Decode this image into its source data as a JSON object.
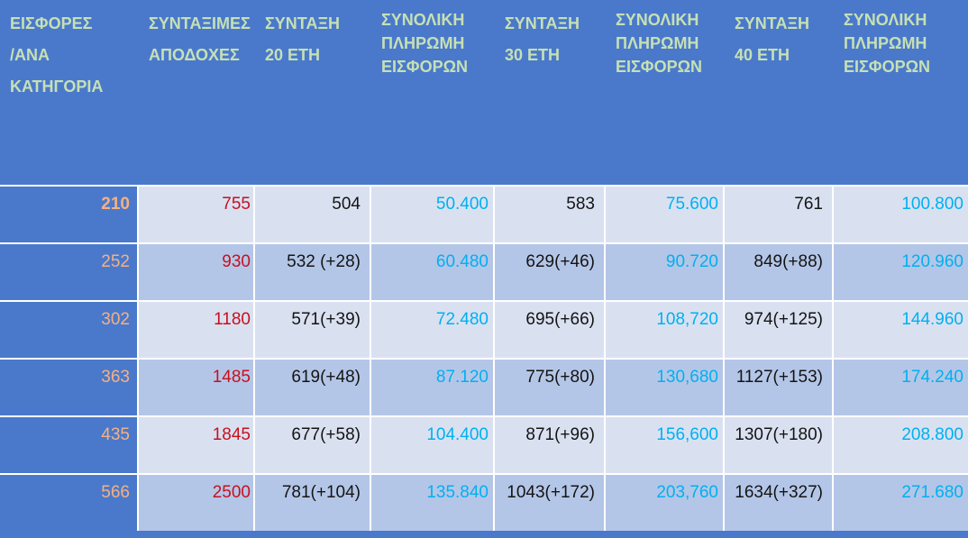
{
  "colors": {
    "background_blue": "#4a79cb",
    "row_band_light": "#d9e1f1",
    "row_band_dark": "#b4c6e7",
    "gridline": "#ffffff",
    "header_text": "#c6e0b4",
    "category_text": "#f4b183",
    "earnings_text": "#c8101e",
    "pension_text": "#141414",
    "total_payment_text": "#00b0f0"
  },
  "table": {
    "headers": [
      {
        "lines": [
          "ΕΙΣΦΟΡΕΣ",
          "/ΑΝΑ",
          "ΚΑΤΗΓΟΡΙΑ"
        ],
        "spacing": "loose"
      },
      {
        "lines": [
          "ΣΥΝΤΑΞΙΜΕΣ",
          "ΑΠΟΔΟΧΕΣ"
        ],
        "spacing": "loose"
      },
      {
        "lines": [
          "ΣΥΝΤΑΞΗ",
          "20 ΕΤΗ"
        ],
        "spacing": "loose"
      },
      {
        "lines": [
          "ΣΥΝΟΛΙΚΗ",
          "ΠΛΗΡΩΜΗ",
          "ΕΙΣΦΟΡΩΝ"
        ],
        "spacing": "tight"
      },
      {
        "lines": [
          "ΣΥΝΤΑΞΗ",
          "30 ΕΤΗ"
        ],
        "spacing": "loose"
      },
      {
        "lines": [
          "ΣΥΝΟΛΙΚΗ",
          "ΠΛΗΡΩΜΗ",
          "ΕΙΣΦΟΡΩΝ"
        ],
        "spacing": "tight"
      },
      {
        "lines": [
          "ΣΥΝΤΑΞΗ",
          "40 ΕΤΗ"
        ],
        "spacing": "loose"
      },
      {
        "lines": [
          "ΣΥΝΟΛΙΚΗ",
          "ΠΛΗΡΩΜΗ",
          "ΕΙΣΦΟΡΩΝ"
        ],
        "spacing": "tight"
      }
    ],
    "rows": [
      [
        "210",
        "755",
        "504",
        "50.400",
        "583",
        "75.600",
        "761",
        "100.800"
      ],
      [
        "252",
        "930",
        "532 (+28)",
        "60.480",
        "629(+46)",
        "90.720",
        "849(+88)",
        "120.960"
      ],
      [
        "302",
        "1180",
        "571(+39)",
        "72.480",
        "695(+66)",
        "108,720",
        "974(+125)",
        "144.960"
      ],
      [
        "363",
        "1485",
        "619(+48)",
        "87.120",
        "775(+80)",
        "130,680",
        "1127(+153)",
        "174.240"
      ],
      [
        "435",
        "1845",
        "677(+58)",
        "104.400",
        "871(+96)",
        "156,600",
        "1307(+180)",
        "208.800"
      ],
      [
        "566",
        "2500",
        "781(+104)",
        "135.840",
        "1043(+172)",
        "203,760",
        "1634(+327)",
        "271.680"
      ]
    ]
  },
  "chart_data": {
    "type": "table",
    "title": "",
    "columns": [
      "ΕΙΣΦΟΡΕΣ /ΑΝΑ ΚΑΤΗΓΟΡΙΑ",
      "ΣΥΝΤΑΞΙΜΕΣ ΑΠΟΔΟΧΕΣ",
      "ΣΥΝΤΑΞΗ 20 ΕΤΗ",
      "ΣΥΝΟΛΙΚΗ ΠΛΗΡΩΜΗ ΕΙΣΦΟΡΩΝ",
      "ΣΥΝΤΑΞΗ 30 ΕΤΗ",
      "ΣΥΝΟΛΙΚΗ ΠΛΗΡΩΜΗ ΕΙΣΦΟΡΩΝ",
      "ΣΥΝΤΑΞΗ 40 ΕΤΗ",
      "ΣΥΝΟΛΙΚΗ ΠΛΗΡΩΜΗ ΕΙΣΦΟΡΩΝ"
    ],
    "rows": [
      [
        "210",
        "755",
        "504",
        "50.400",
        "583",
        "75.600",
        "761",
        "100.800"
      ],
      [
        "252",
        "930",
        "532 (+28)",
        "60.480",
        "629(+46)",
        "90.720",
        "849(+88)",
        "120.960"
      ],
      [
        "302",
        "1180",
        "571(+39)",
        "72.480",
        "695(+66)",
        "108,720",
        "974(+125)",
        "144.960"
      ],
      [
        "363",
        "1485",
        "619(+48)",
        "87.120",
        "775(+80)",
        "130,680",
        "1127(+153)",
        "174.240"
      ],
      [
        "435",
        "1845",
        "677(+58)",
        "104.400",
        "871(+96)",
        "156,600",
        "1307(+180)",
        "208.800"
      ],
      [
        "566",
        "2500",
        "781(+104)",
        "135.840",
        "1043(+172)",
        "203,760",
        "1634(+327)",
        "271.680"
      ]
    ]
  }
}
